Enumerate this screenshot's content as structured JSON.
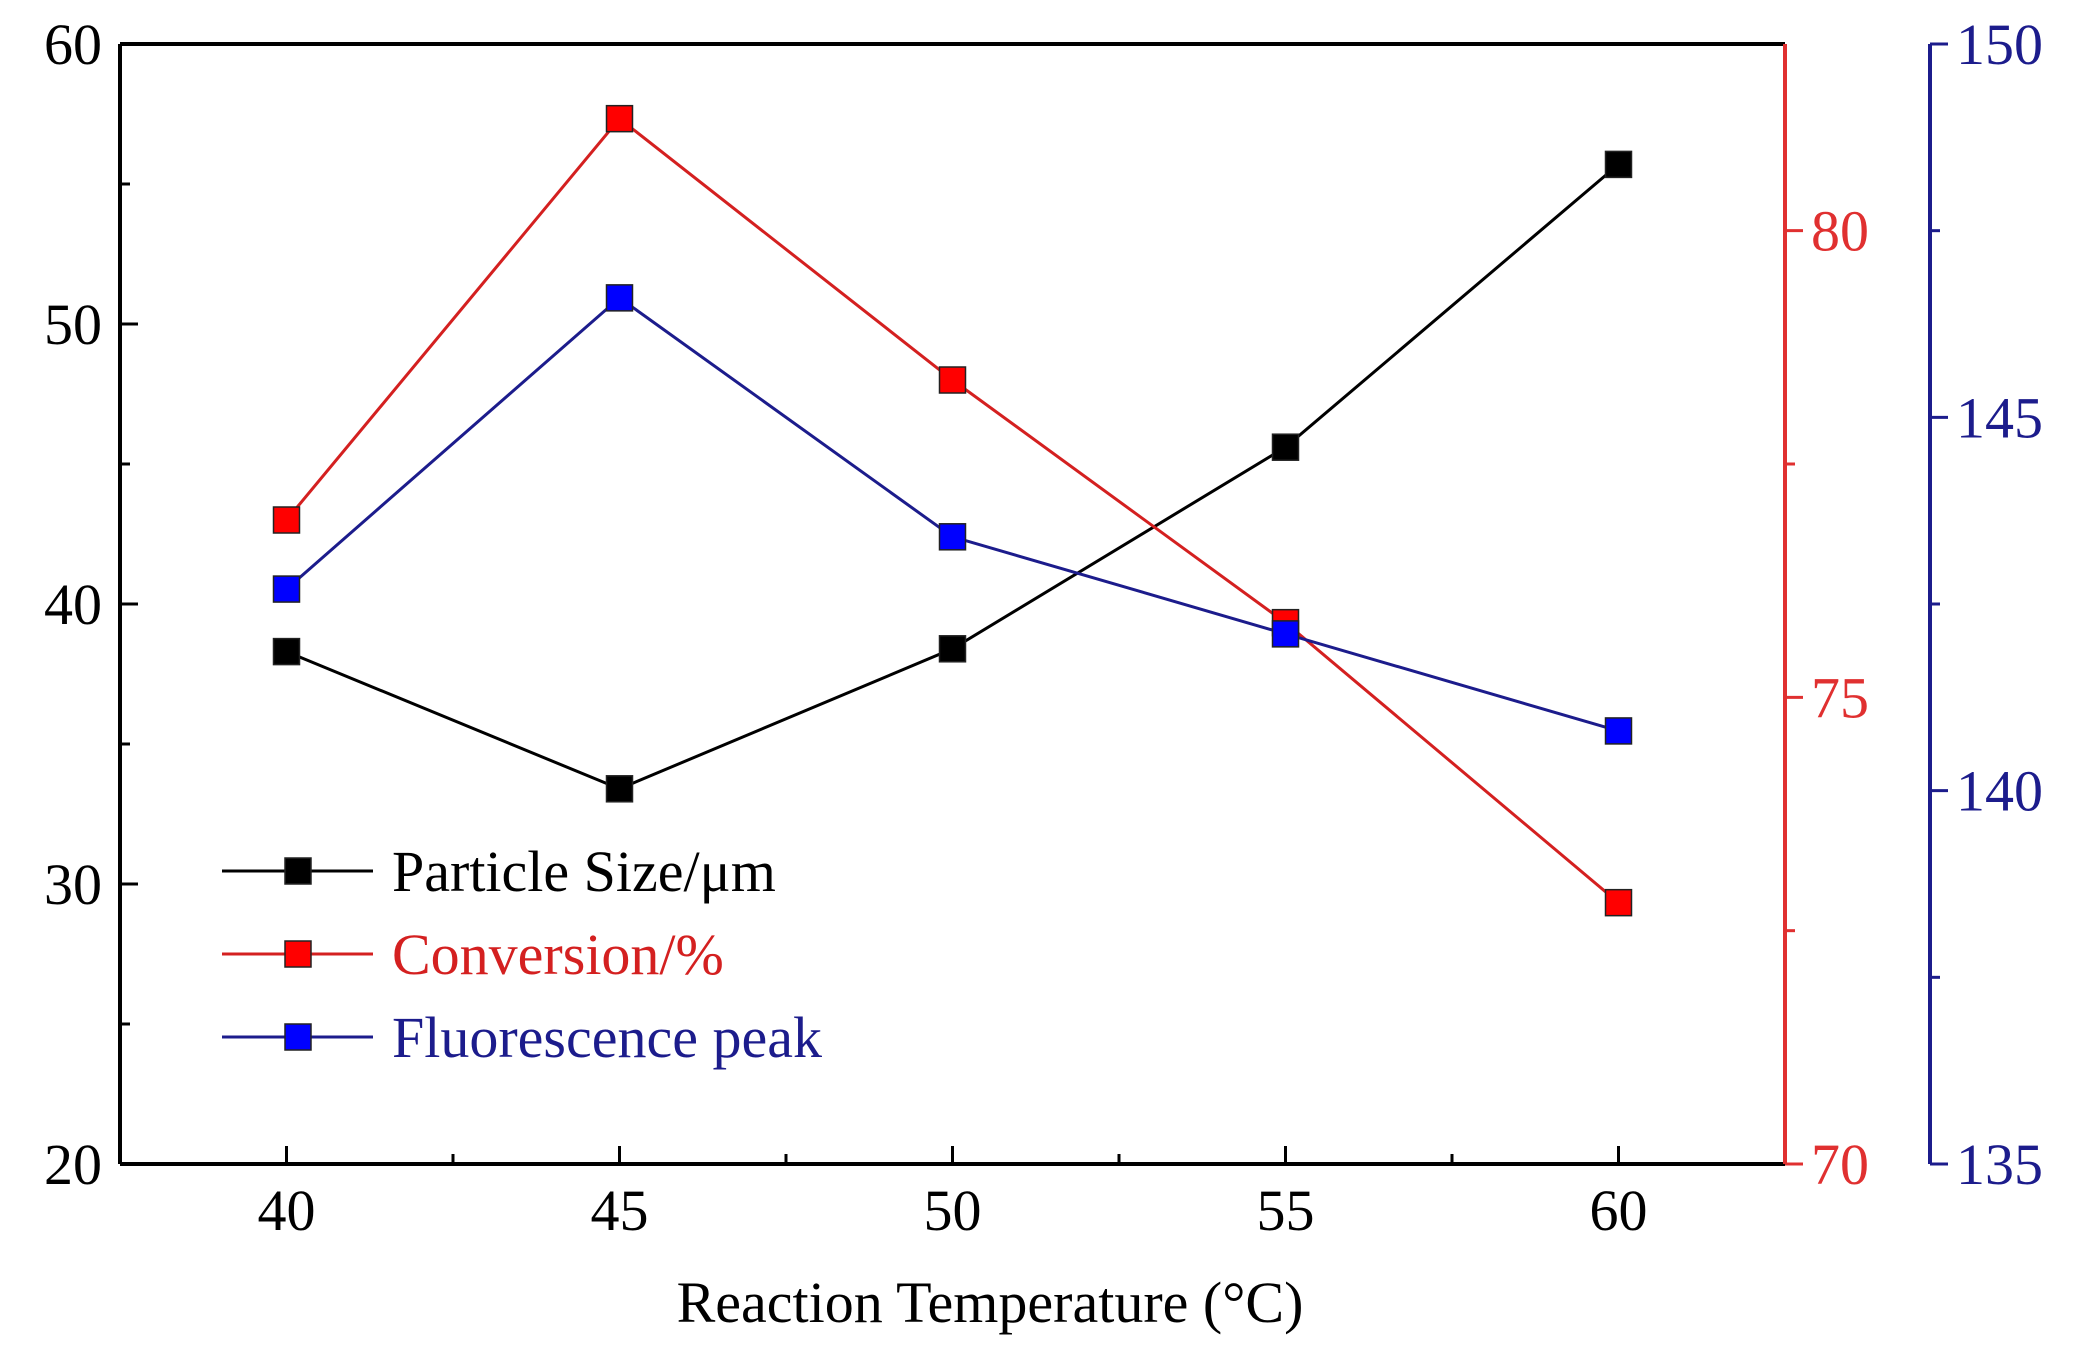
{
  "chart_data": {
    "type": "line",
    "title": "",
    "x": [
      40,
      45,
      50,
      55,
      60
    ],
    "xlabel": "Reaction Temperature (°C)",
    "xlim": [
      37.5,
      62.5
    ],
    "xticks": [
      "40",
      "45",
      "50",
      "55",
      "60"
    ],
    "axes": {
      "left": {
        "label": "",
        "ylim": [
          20,
          60
        ],
        "ticks": [
          "20",
          "30",
          "40",
          "50",
          "60"
        ],
        "color": "#000000"
      },
      "right1": {
        "label": "",
        "ylim": [
          70,
          82
        ],
        "ticks": [
          "70",
          "75",
          "80"
        ],
        "color": "#e03030"
      },
      "right2": {
        "label": "",
        "ylim": [
          135,
          150
        ],
        "ticks": [
          "135",
          "140",
          "145",
          "150"
        ],
        "color": "#1c1c8c"
      }
    },
    "series": [
      {
        "name": "Particle Size/μm",
        "axis": "left",
        "color": "#000000",
        "marker_color": "#000000",
        "values": [
          38.3,
          33.4,
          38.4,
          45.6,
          55.7
        ]
      },
      {
        "name": "Conversion/%",
        "axis": "right1",
        "color": "#d42020",
        "marker_color": "#ff0000",
        "values": [
          76.9,
          81.2,
          78.4,
          75.8,
          72.8
        ]
      },
      {
        "name": "Fluorescence peak",
        "axis": "right2",
        "color": "#1c1c8c",
        "marker_color": "#0000ff",
        "values": [
          142.7,
          146.6,
          143.4,
          142.1,
          140.8
        ]
      }
    ],
    "legend_position": "lower-left"
  }
}
